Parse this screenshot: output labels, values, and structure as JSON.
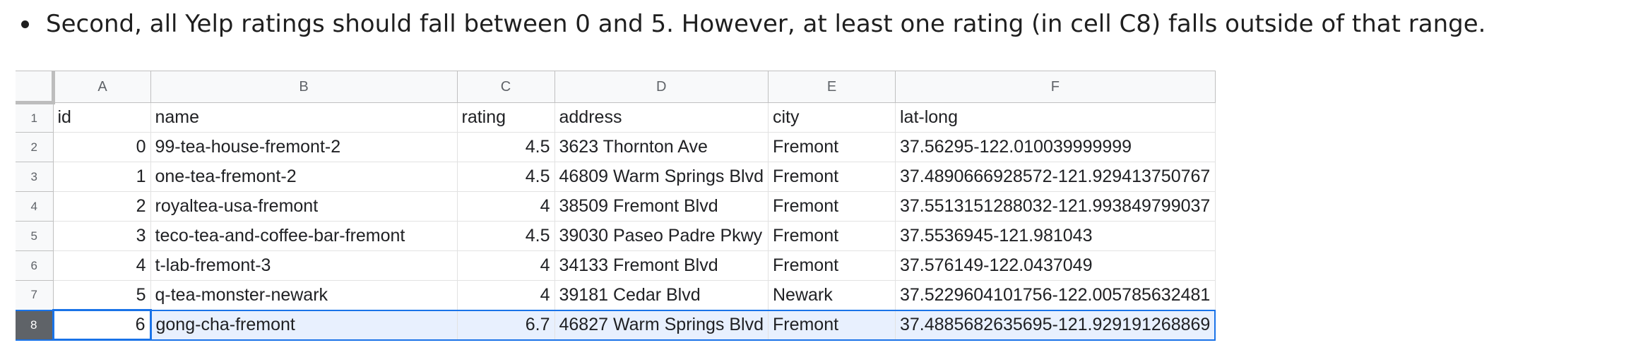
{
  "bullet": {
    "text": "Second, all Yelp ratings should fall between 0 and 5. However, at least one rating (in cell C8) falls outside of that range."
  },
  "sheet": {
    "columns": [
      "A",
      "B",
      "C",
      "D",
      "E",
      "F"
    ],
    "rows": [
      {
        "num": "1",
        "cells": [
          "id",
          "name",
          "rating",
          "address",
          "city",
          "lat-long"
        ]
      },
      {
        "num": "2",
        "cells": [
          "0",
          "99-tea-house-fremont-2",
          "4.5",
          "3623 Thornton Ave",
          "Fremont",
          "37.56295-122.010039999999"
        ]
      },
      {
        "num": "3",
        "cells": [
          "1",
          "one-tea-fremont-2",
          "4.5",
          "46809 Warm Springs Blvd",
          "Fremont",
          "37.4890666928572-121.929413750767"
        ]
      },
      {
        "num": "4",
        "cells": [
          "2",
          "royaltea-usa-fremont",
          "4",
          "38509 Fremont Blvd",
          "Fremont",
          "37.5513151288032-121.993849799037"
        ]
      },
      {
        "num": "5",
        "cells": [
          "3",
          "teco-tea-and-coffee-bar-fremont",
          "4.5",
          "39030 Paseo Padre Pkwy",
          "Fremont",
          "37.5536945-121.981043"
        ]
      },
      {
        "num": "6",
        "cells": [
          "4",
          "t-lab-fremont-3",
          "4",
          "34133 Fremont Blvd",
          "Fremont",
          "37.576149-122.0437049"
        ]
      },
      {
        "num": "7",
        "cells": [
          "5",
          "q-tea-monster-newark",
          "4",
          "39181 Cedar Blvd",
          "Newark",
          "37.5229604101756-122.005785632481"
        ]
      },
      {
        "num": "8",
        "cells": [
          "6",
          "gong-cha-fremont",
          "6.7",
          "46827 Warm Springs Blvd",
          "Fremont",
          "37.4885682635695-121.929191268869"
        ]
      }
    ],
    "selected_row": "8",
    "active_cell": "A8"
  },
  "colors": {
    "selection_accent": "#1a73e8",
    "selection_fill": "#e8f0fe",
    "header_fill": "#f8f9fa",
    "selected_rownum_fill": "#5f6368"
  }
}
